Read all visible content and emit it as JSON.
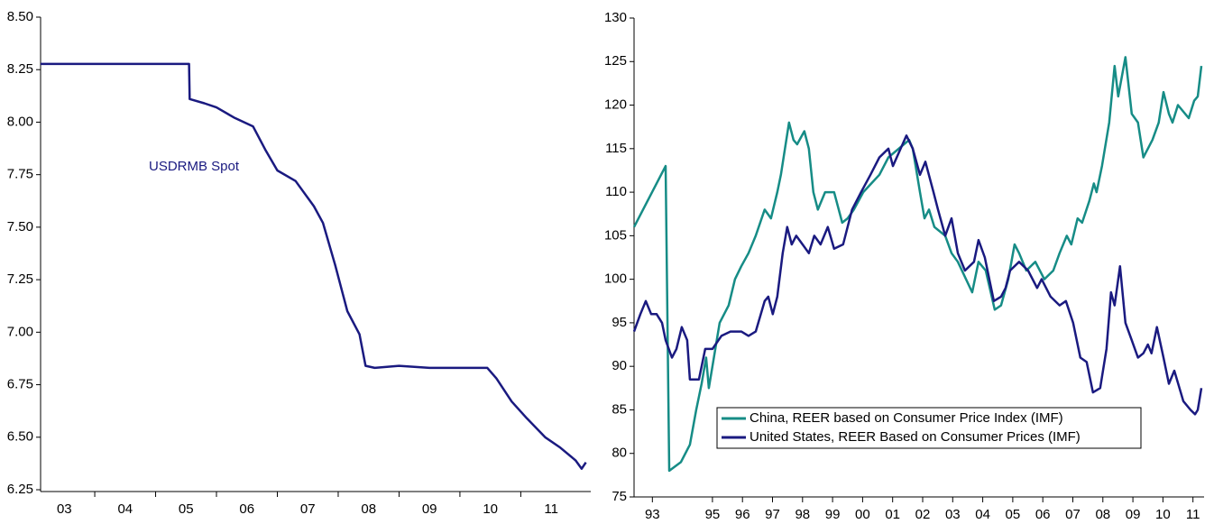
{
  "chart_data": [
    {
      "type": "line",
      "annotations": [
        "USDRMB Spot"
      ],
      "xlim": [
        2003.11,
        2012.15
      ],
      "xticks": [
        {
          "value": 2003.5,
          "label": "03"
        },
        {
          "value": 2004.5,
          "label": "04"
        },
        {
          "value": 2005.5,
          "label": "05"
        },
        {
          "value": 2006.5,
          "label": "06"
        },
        {
          "value": 2007.5,
          "label": "07"
        },
        {
          "value": 2008.5,
          "label": "08"
        },
        {
          "value": 2009.5,
          "label": "09"
        },
        {
          "value": 2010.5,
          "label": "10"
        },
        {
          "value": 2011.5,
          "label": "11"
        }
      ],
      "ylim": [
        6.25,
        8.5
      ],
      "yticks": [
        {
          "value": 6.25,
          "label": "6.25"
        },
        {
          "value": 6.5,
          "label": "6.50"
        },
        {
          "value": 6.75,
          "label": "6.75"
        },
        {
          "value": 7,
          "label": "7.00"
        },
        {
          "value": 7.25,
          "label": "7.25"
        },
        {
          "value": 7.5,
          "label": "7.50"
        },
        {
          "value": 7.75,
          "label": "7.75"
        },
        {
          "value": 8,
          "label": "8.00"
        },
        {
          "value": 8.25,
          "label": "8.25"
        },
        {
          "value": 8.5,
          "label": "8.50"
        }
      ],
      "series": [
        {
          "color": "#1a1a80",
          "x": [
            2003.11,
            2005.55,
            2005.56,
            2005.8,
            2006.0,
            2006.3,
            2006.6,
            2006.8,
            2007.0,
            2007.3,
            2007.6,
            2007.75,
            2007.95,
            2008.15,
            2008.35,
            2008.45,
            2008.6,
            2009.0,
            2009.5,
            2010.0,
            2010.45,
            2010.6,
            2010.85,
            2011.1,
            2011.4,
            2011.65,
            2011.9,
            2012.0,
            2012.07
          ],
          "values": [
            8.277,
            8.277,
            8.11,
            8.09,
            8.07,
            8.02,
            7.98,
            7.87,
            7.77,
            7.72,
            7.6,
            7.52,
            7.32,
            7.1,
            6.99,
            6.84,
            6.83,
            6.84,
            6.83,
            6.83,
            6.83,
            6.78,
            6.67,
            6.59,
            6.5,
            6.45,
            6.39,
            6.35,
            6.38
          ]
        }
      ]
    },
    {
      "type": "line",
      "xlim": [
        1992.39,
        2011.37
      ],
      "xticks": [
        {
          "value": 1993,
          "label": "93"
        },
        {
          "value": 1995,
          "label": "95"
        },
        {
          "value": 1996,
          "label": "96"
        },
        {
          "value": 1997,
          "label": "97"
        },
        {
          "value": 1998,
          "label": "98"
        },
        {
          "value": 1999,
          "label": "99"
        },
        {
          "value": 2000,
          "label": "00"
        },
        {
          "value": 2001,
          "label": "01"
        },
        {
          "value": 2002,
          "label": "02"
        },
        {
          "value": 2003,
          "label": "03"
        },
        {
          "value": 2004,
          "label": "04"
        },
        {
          "value": 2005,
          "label": "05"
        },
        {
          "value": 2006,
          "label": "06"
        },
        {
          "value": 2007,
          "label": "07"
        },
        {
          "value": 2008,
          "label": "08"
        },
        {
          "value": 2009,
          "label": "09"
        },
        {
          "value": 2010,
          "label": "10"
        },
        {
          "value": 2011,
          "label": "11"
        }
      ],
      "ylim": [
        75,
        130
      ],
      "yticks": [
        75,
        80,
        85,
        90,
        95,
        100,
        105,
        110,
        115,
        120,
        125,
        130
      ],
      "legend": "bottom-center",
      "series": [
        {
          "name": "China, REER based on Consumer Price Index (IMF)",
          "color": "#168c86",
          "x": [
            1992.39,
            1993.44,
            1993.56,
            1993.95,
            1994.25,
            1994.46,
            1994.64,
            1994.79,
            1994.88,
            1995.0,
            1995.24,
            1995.54,
            1995.75,
            1995.96,
            1996.2,
            1996.44,
            1996.74,
            1996.95,
            1997.16,
            1997.28,
            1997.55,
            1997.7,
            1997.82,
            1998.06,
            1998.21,
            1998.36,
            1998.51,
            1998.75,
            1999.05,
            1999.32,
            1999.5,
            1999.71,
            2000.02,
            2000.29,
            2000.56,
            2000.86,
            2001.55,
            2001.67,
            2001.91,
            2002.06,
            2002.21,
            2002.39,
            2002.75,
            2002.96,
            2003.17,
            2003.65,
            2003.86,
            2004.1,
            2004.4,
            2004.61,
            2004.85,
            2005.06,
            2005.21,
            2005.45,
            2005.75,
            2006.05,
            2006.35,
            2006.56,
            2006.8,
            2006.95,
            2007.16,
            2007.31,
            2007.55,
            2007.7,
            2007.79,
            2007.97,
            2008.21,
            2008.39,
            2008.51,
            2008.75,
            2008.96,
            2009.17,
            2009.35,
            2009.65,
            2009.86,
            2010.02,
            2010.2,
            2010.32,
            2010.5,
            2010.86,
            2011.04,
            2011.16,
            2011.28
          ],
          "values": [
            106,
            113,
            78,
            79,
            81,
            85,
            88,
            91,
            87.5,
            90,
            95,
            97,
            100,
            101.5,
            103,
            105,
            108,
            107,
            110,
            112,
            118,
            116,
            115.5,
            117,
            115,
            110,
            108,
            110,
            110,
            106.5,
            107,
            108,
            110,
            111,
            112,
            114,
            116,
            115,
            110,
            107,
            108,
            106,
            105,
            103,
            102,
            98.5,
            102,
            101,
            96.5,
            97,
            100,
            104,
            103,
            101,
            102,
            100,
            101,
            103,
            105,
            104,
            107,
            106.5,
            109,
            111,
            110,
            113,
            118,
            124.5,
            121,
            125.5,
            119,
            118,
            114,
            116,
            118,
            121.5,
            119,
            118,
            120,
            118.5,
            120.5,
            121,
            124.5
          ]
        },
        {
          "name": "United States, REER Based on Consumer Prices (IMF)",
          "color": "#1a1a80",
          "x": [
            1992.39,
            1992.6,
            1992.78,
            1992.96,
            1993.14,
            1993.32,
            1993.44,
            1993.65,
            1993.8,
            1993.98,
            1994.16,
            1994.25,
            1994.55,
            1994.76,
            1995.0,
            1995.3,
            1995.6,
            1995.96,
            1996.2,
            1996.44,
            1996.74,
            1996.86,
            1997.01,
            1997.16,
            1997.34,
            1997.49,
            1997.64,
            1997.79,
            1998.0,
            1998.21,
            1998.39,
            1998.6,
            1998.84,
            1999.05,
            1999.35,
            1999.65,
            1999.95,
            2000.26,
            2000.56,
            2000.86,
            2001.01,
            2001.46,
            2001.67,
            2001.91,
            2002.09,
            2002.36,
            2002.51,
            2002.75,
            2002.96,
            2003.17,
            2003.41,
            2003.71,
            2003.86,
            2004.07,
            2004.37,
            2004.61,
            2004.76,
            2004.91,
            2005.21,
            2005.51,
            2005.81,
            2005.96,
            2006.26,
            2006.56,
            2006.77,
            2007.01,
            2007.25,
            2007.46,
            2007.67,
            2007.91,
            2008.12,
            2008.27,
            2008.39,
            2008.57,
            2008.75,
            2008.96,
            2009.17,
            2009.35,
            2009.5,
            2009.62,
            2009.8,
            2010.02,
            2010.2,
            2010.38,
            2010.68,
            2010.92,
            2011.07,
            2011.16,
            2011.28
          ],
          "values": [
            94,
            96,
            97.5,
            96,
            96,
            95,
            93,
            91,
            92,
            94.5,
            93,
            88.5,
            88.5,
            92,
            92,
            93.5,
            94,
            94,
            93.5,
            94,
            97.5,
            98,
            96,
            98,
            103,
            106,
            104,
            105,
            104,
            103,
            105,
            104,
            106,
            103.5,
            104,
            108,
            110,
            112,
            114,
            115,
            113,
            116.5,
            115,
            112,
            113.5,
            110,
            108,
            105,
            107,
            103,
            101,
            102,
            104.5,
            102.5,
            97.5,
            98,
            99,
            101,
            102,
            101,
            99,
            100,
            98,
            97,
            97.5,
            95,
            91,
            90.5,
            87,
            87.5,
            92,
            98.5,
            97,
            101.5,
            95,
            93,
            91,
            91.5,
            92.5,
            91.5,
            94.5,
            91,
            88,
            89.5,
            86,
            85,
            84.5,
            85,
            87.5
          ]
        }
      ]
    }
  ]
}
